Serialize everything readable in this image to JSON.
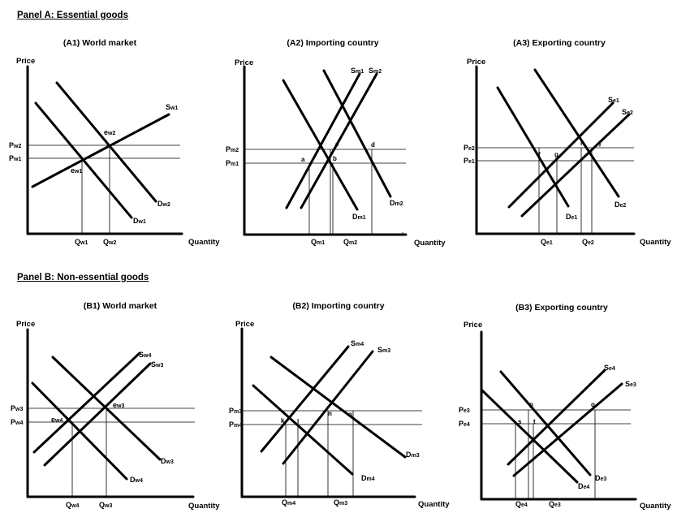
{
  "panels": [
    {
      "heading": "Panel A: Essential goods",
      "charts": [
        {
          "id": "A1",
          "title": "(A1) World market",
          "ylabel": "Price",
          "xlabel": "Quantity",
          "curves": [
            {
              "name": "Sw1",
              "type": "supply",
              "label": "Sw1"
            },
            {
              "name": "Dw1",
              "type": "demand",
              "label": "Dw1"
            },
            {
              "name": "Dw2",
              "type": "demand",
              "label": "Dw2"
            }
          ],
          "points": [
            "ew1",
            "ew2"
          ],
          "price_ticks": [
            "Pw2",
            "Pw1"
          ],
          "quantity_ticks": [
            "Qw1",
            "Qw2"
          ]
        },
        {
          "id": "A2",
          "title": "(A2) Importing country",
          "ylabel": "Price",
          "xlabel": "Quantity",
          "curves": [
            {
              "name": "Sm1",
              "type": "supply",
              "label": "Sm1"
            },
            {
              "name": "Sm2",
              "type": "supply",
              "label": "Sm2"
            },
            {
              "name": "Dm1",
              "type": "demand",
              "label": "Dm1"
            },
            {
              "name": "Dm2",
              "type": "demand",
              "label": "Dm2"
            }
          ],
          "points": [
            "a",
            "b",
            "c",
            "d"
          ],
          "price_ticks": [
            "Pm2",
            "Pm1"
          ],
          "quantity_ticks": [
            "Qm1",
            "Qm2"
          ]
        },
        {
          "id": "A3",
          "title": "(A3) Exporting country",
          "ylabel": "Price",
          "xlabel": "Quantity",
          "curves": [
            {
              "name": "Se1",
              "type": "supply",
              "label": "Se1"
            },
            {
              "name": "Se2",
              "type": "supply",
              "label": "Se2"
            },
            {
              "name": "De1",
              "type": "demand",
              "label": "De1"
            },
            {
              "name": "De2",
              "type": "demand",
              "label": "De2"
            }
          ],
          "points": [
            "f",
            "g",
            "h",
            "j"
          ],
          "price_ticks": [
            "Pe2",
            "Pe1"
          ],
          "quantity_ticks": [
            "Qe1",
            "Qe2"
          ]
        }
      ]
    },
    {
      "heading": "Panel B: Non-essential goods",
      "charts": [
        {
          "id": "B1",
          "title": "(B1)  World market",
          "ylabel": "Price",
          "xlabel": "Quantity",
          "curves": [
            {
              "name": "Sw4",
              "type": "supply",
              "label": "Sw4"
            },
            {
              "name": "Sw3",
              "type": "supply",
              "label": "Sw3"
            },
            {
              "name": "Dw3",
              "type": "demand",
              "label": "Dw3"
            },
            {
              "name": "Dw4",
              "type": "demand",
              "label": "Dw4"
            }
          ],
          "points": [
            "ew4",
            "ew3"
          ],
          "price_ticks": [
            "Pw3",
            "Pw4"
          ],
          "quantity_ticks": [
            "Qw4",
            "Qw3"
          ]
        },
        {
          "id": "B2",
          "title": "(B2) Importing country",
          "ylabel": "Price",
          "xlabel": "Quantity",
          "curves": [
            {
              "name": "Sm4",
              "type": "supply",
              "label": "Sm4"
            },
            {
              "name": "Sm3",
              "type": "supply",
              "label": "Sm3"
            },
            {
              "name": "Dm3",
              "type": "demand",
              "label": "Dm3"
            },
            {
              "name": "Dm4",
              "type": "demand",
              "label": "Dm4"
            }
          ],
          "points": [
            "k",
            "l",
            "n",
            "o"
          ],
          "price_ticks": [
            "Pm3",
            "Pm4"
          ],
          "quantity_ticks": [
            "Qm4",
            "Qm3"
          ]
        },
        {
          "id": "B3",
          "title": "(B3) Exporting country",
          "ylabel": "Price",
          "xlabel": "Quantity",
          "curves": [
            {
              "name": "Se4",
              "type": "supply",
              "label": "Se4"
            },
            {
              "name": "Se3",
              "type": "supply",
              "label": "Se3"
            },
            {
              "name": "De3",
              "type": "demand",
              "label": "De3"
            },
            {
              "name": "De4",
              "type": "demand",
              "label": "De4"
            }
          ],
          "points": [
            "p",
            "q",
            "s",
            "t"
          ],
          "price_ticks": [
            "Pe3",
            "Pe4"
          ],
          "quantity_ticks": [
            "Qe4",
            "Qe3"
          ]
        }
      ]
    }
  ]
}
